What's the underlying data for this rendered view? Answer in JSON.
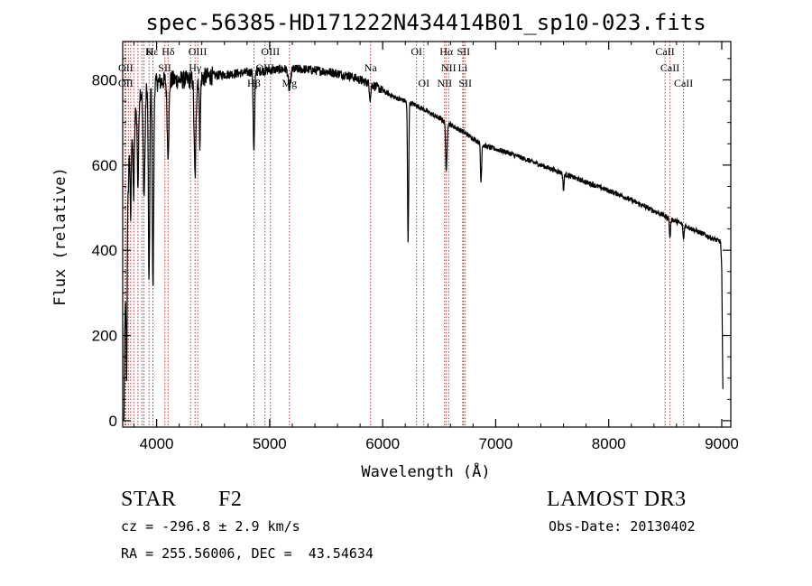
{
  "chart_data": {
    "type": "line",
    "title": "spec-56385-HD171222N434414B01_sp10-023.fits",
    "xlabel": "Wavelength (Å)",
    "ylabel": "Flux (relative)",
    "xlim": [
      3700,
      9080
    ],
    "ylim": [
      -15,
      890
    ],
    "x_ticks": [
      4000,
      5000,
      6000,
      7000,
      8000,
      9000
    ],
    "y_ticks": [
      0,
      200,
      400,
      600,
      800
    ],
    "grid": false,
    "line_color": "#000000",
    "marker_color": "#b22222",
    "continuum": {
      "x": [
        3700,
        3760,
        3850,
        3950,
        4100,
        4300,
        4500,
        4700,
        4900,
        5100,
        5300,
        5500,
        5700,
        5900,
        6100,
        6300,
        6500,
        6700,
        6900,
        7100,
        7300,
        7500,
        7700,
        7900,
        8100,
        8300,
        8500,
        8700,
        8900,
        8990,
        9000,
        9005,
        9010
      ],
      "y": [
        10,
        660,
        770,
        790,
        800,
        800,
        810,
        815,
        820,
        825,
        825,
        820,
        810,
        790,
        760,
        740,
        710,
        680,
        645,
        630,
        610,
        590,
        570,
        550,
        530,
        505,
        480,
        455,
        430,
        420,
        350,
        200,
        80
      ]
    },
    "absorption_features": [
      {
        "x": 3705,
        "depth": 700,
        "width": 4
      },
      {
        "x": 3735,
        "depth": 300,
        "width": 4
      },
      {
        "x": 3770,
        "depth": 200,
        "width": 5
      },
      {
        "x": 3797,
        "depth": 180,
        "width": 6
      },
      {
        "x": 3835,
        "depth": 200,
        "width": 6
      },
      {
        "x": 3889,
        "depth": 250,
        "width": 8
      },
      {
        "x": 3933,
        "depth": 470,
        "width": 6
      },
      {
        "x": 3968,
        "depth": 490,
        "width": 6
      },
      {
        "x": 4101,
        "depth": 170,
        "width": 8
      },
      {
        "x": 4340,
        "depth": 230,
        "width": 8
      },
      {
        "x": 4383,
        "depth": 150,
        "width": 5
      },
      {
        "x": 4861,
        "depth": 190,
        "width": 6
      },
      {
        "x": 5175,
        "depth": 50,
        "width": 10
      },
      {
        "x": 5890,
        "depth": 35,
        "width": 6
      },
      {
        "x": 6225,
        "depth": 330,
        "width": 5
      },
      {
        "x": 6563,
        "depth": 120,
        "width": 6
      },
      {
        "x": 6870,
        "depth": 90,
        "width": 5
      },
      {
        "x": 7600,
        "depth": 40,
        "width": 5
      },
      {
        "x": 8542,
        "depth": 45,
        "width": 5
      },
      {
        "x": 8662,
        "depth": 35,
        "width": 5
      }
    ],
    "line_markers": [
      {
        "x": 3720,
        "labels": []
      },
      {
        "x": 3727,
        "labels": []
      },
      {
        "x": 3750,
        "labels": []
      },
      {
        "x": 3771,
        "labels": []
      },
      {
        "x": 3798,
        "labels": []
      },
      {
        "x": 3835,
        "labels": []
      },
      {
        "x": 3869,
        "labels": []
      },
      {
        "x": 3889,
        "labels": []
      },
      {
        "x": 3933,
        "labels": []
      },
      {
        "x": 3968,
        "labels": []
      },
      {
        "x": 4073,
        "labels": []
      },
      {
        "x": 4101,
        "labels": []
      },
      {
        "x": 4300,
        "labels": []
      },
      {
        "x": 4340,
        "labels": []
      },
      {
        "x": 4364,
        "labels": []
      },
      {
        "x": 4861,
        "labels": []
      },
      {
        "x": 4959,
        "labels": []
      },
      {
        "x": 5007,
        "labels": []
      },
      {
        "x": 5175,
        "labels": []
      },
      {
        "x": 5893,
        "labels": []
      },
      {
        "x": 6300,
        "labels": []
      },
      {
        "x": 6364,
        "labels": []
      },
      {
        "x": 6548,
        "labels": []
      },
      {
        "x": 6563,
        "labels": []
      },
      {
        "x": 6584,
        "labels": []
      },
      {
        "x": 6708,
        "labels": []
      },
      {
        "x": 6716,
        "labels": []
      },
      {
        "x": 6731,
        "labels": []
      },
      {
        "x": 8498,
        "labels": []
      },
      {
        "x": 8542,
        "labels": []
      },
      {
        "x": 8662,
        "labels": []
      }
    ],
    "line_labels": [
      {
        "text": "Hε",
        "x": 3960,
        "row": 1
      },
      {
        "text": "K",
        "x": 3934,
        "row": 1
      },
      {
        "text": "Hδ",
        "x": 4102,
        "row": 1
      },
      {
        "text": "OIII",
        "x": 4363,
        "row": 1
      },
      {
        "text": "OIII",
        "x": 5007,
        "row": 1
      },
      {
        "text": "OI",
        "x": 6300,
        "row": 1
      },
      {
        "text": "Hα",
        "x": 6563,
        "row": 1
      },
      {
        "text": "SII",
        "x": 6716,
        "row": 1
      },
      {
        "text": "CaII",
        "x": 8498,
        "row": 1
      },
      {
        "text": "OII",
        "x": 3727,
        "row": 2
      },
      {
        "text": "SII",
        "x": 4072,
        "row": 2
      },
      {
        "text": "Hγ",
        "x": 4340,
        "row": 2
      },
      {
        "text": "OIII",
        "x": 4959,
        "row": 2
      },
      {
        "text": "Na",
        "x": 5893,
        "row": 2
      },
      {
        "text": "NII",
        "x": 6584,
        "row": 2
      },
      {
        "text": "Li",
        "x": 6708,
        "row": 2
      },
      {
        "text": "CaII",
        "x": 8542,
        "row": 2
      },
      {
        "text": "OII",
        "x": 3727,
        "row": 3
      },
      {
        "text": "Hβ",
        "x": 4861,
        "row": 3
      },
      {
        "text": "Mg",
        "x": 5175,
        "row": 3
      },
      {
        "text": "OI",
        "x": 6364,
        "row": 3
      },
      {
        "text": "NII",
        "x": 6548,
        "row": 3
      },
      {
        "text": "SII",
        "x": 6731,
        "row": 3
      },
      {
        "text": "CaII",
        "x": 8662,
        "row": 3
      }
    ]
  },
  "info": {
    "object_type": "STAR",
    "subclass": "F2",
    "survey": "LAMOST DR3",
    "velocity": "cz = -296.8 ± 2.9 km/s",
    "obs_date": "Obs-Date: 20130402",
    "coords": "RA = 255.56006, DEC =  43.54634"
  }
}
